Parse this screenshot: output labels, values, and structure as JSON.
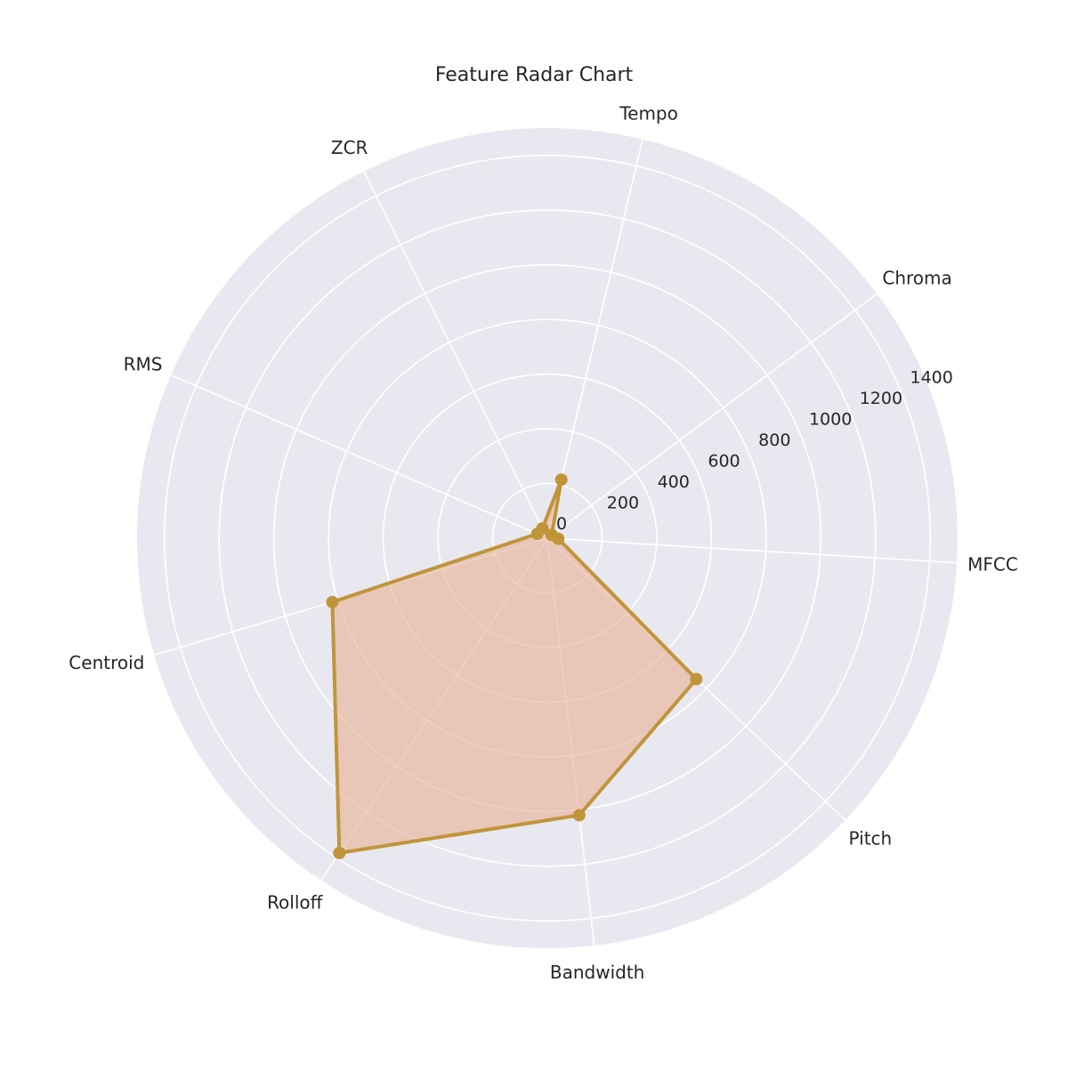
{
  "chart_data": {
    "type": "radar",
    "title": "Feature Radar Chart",
    "categories": [
      "MFCC",
      "Chroma",
      "Tempo",
      "ZCR",
      "RMS",
      "Centroid",
      "Rolloff",
      "Bandwidth",
      "Pitch"
    ],
    "series": [
      {
        "values": [
          40,
          20,
          220,
          40,
          40,
          820,
          1380,
          1020,
          750
        ]
      }
    ],
    "rlim": [
      0,
      1500
    ],
    "rticks": [
      0,
      200,
      400,
      600,
      800,
      1000,
      1200,
      1400
    ],
    "grid": true,
    "colors": {
      "background": "#e8e8f0",
      "grid": "#ffffff",
      "line": "#c0953a",
      "fill": "#e8a98a",
      "text": "#262626"
    }
  }
}
